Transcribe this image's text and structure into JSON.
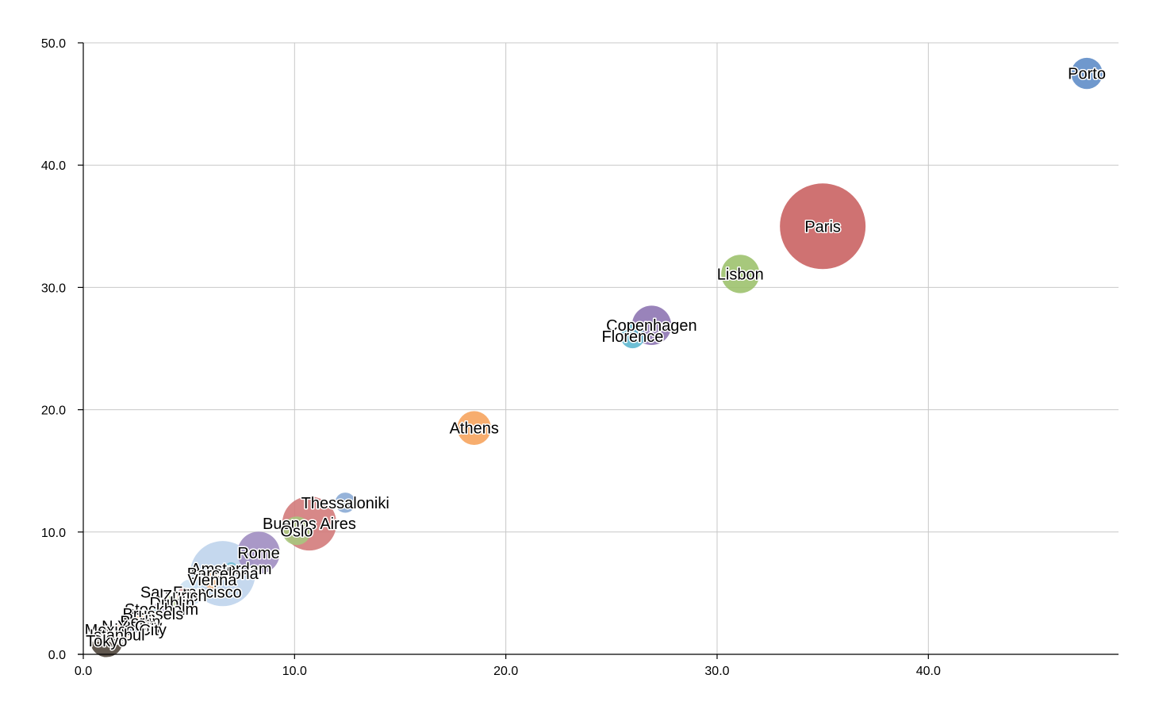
{
  "chart_data": {
    "type": "scatter",
    "title": "",
    "xlabel": "",
    "ylabel": "",
    "xlim": [
      0,
      49
    ],
    "ylim": [
      0,
      50
    ],
    "x_ticks": [
      "0.0",
      "10.0",
      "20.0",
      "30.0",
      "40.0"
    ],
    "x_tick_values": [
      0,
      10,
      20,
      30,
      40
    ],
    "y_ticks": [
      "0.0",
      "10.0",
      "20.0",
      "30.0",
      "40.0",
      "50.0"
    ],
    "y_tick_values": [
      0,
      10,
      20,
      30,
      40,
      50
    ],
    "grid": true,
    "legend": "none",
    "points": [
      {
        "label": "Porto",
        "x": 47.5,
        "y": 47.5,
        "size": 1.2,
        "color": "#5b8ac6"
      },
      {
        "label": "Paris",
        "x": 35.0,
        "y": 35.0,
        "size": 9.0,
        "color": "#c85f5f"
      },
      {
        "label": "Lisbon",
        "x": 31.1,
        "y": 31.1,
        "size": 1.8,
        "color": "#9bc06a"
      },
      {
        "label": "Copenhagen",
        "x": 26.9,
        "y": 26.9,
        "size": 1.9,
        "color": "#8b72b0"
      },
      {
        "label": "Florence",
        "x": 26.0,
        "y": 26.0,
        "size": 0.7,
        "color": "#5ab6cf"
      },
      {
        "label": "Athens",
        "x": 18.5,
        "y": 18.5,
        "size": 1.4,
        "color": "#f6a25a"
      },
      {
        "label": "Thessaloniki",
        "x": 12.4,
        "y": 12.4,
        "size": 0.5,
        "color": "#88a8d4"
      },
      {
        "label": "Buenos Aires",
        "x": 10.7,
        "y": 10.7,
        "size": 3.6,
        "color": "#d17878"
      },
      {
        "label": "Oslo",
        "x": 10.1,
        "y": 10.1,
        "size": 1.0,
        "color": "#a7c77d"
      },
      {
        "label": "Rome",
        "x": 8.3,
        "y": 8.3,
        "size": 2.2,
        "color": "#9d8abf"
      },
      {
        "label": "Amsterdam",
        "x": 7.0,
        "y": 7.0,
        "size": 0.2,
        "color": "#6fbcd4"
      },
      {
        "label": "Barcelona",
        "x": 6.6,
        "y": 6.6,
        "size": 5.2,
        "color": "#bdd3ec"
      },
      {
        "label": "Vienna",
        "x": 6.1,
        "y": 6.1,
        "size": 0.4,
        "color": "#f5b98a"
      },
      {
        "label": "San Francisco",
        "x": 5.1,
        "y": 5.1,
        "size": 0.8,
        "color": "#cbe0f2"
      },
      {
        "label": "Zurich",
        "x": 4.8,
        "y": 4.8,
        "size": 0.3,
        "color": "#d99a9a"
      },
      {
        "label": "Dublin",
        "x": 4.2,
        "y": 4.2,
        "size": 0.3,
        "color": "#c7dca8"
      },
      {
        "label": "Stockholm",
        "x": 3.7,
        "y": 3.7,
        "size": 0.3,
        "color": "#b7a9d1"
      },
      {
        "label": "Brussels",
        "x": 3.3,
        "y": 3.3,
        "size": 0.3,
        "color": "#9dcfe0"
      },
      {
        "label": "Berlin",
        "x": 2.7,
        "y": 2.7,
        "size": 0.3,
        "color": "#f7c9a2"
      },
      {
        "label": "N.Y. City",
        "x": 2.3,
        "y": 2.3,
        "size": 0.3,
        "color": "#7e8fb1"
      },
      {
        "label": "Mexico City",
        "x": 2.0,
        "y": 2.0,
        "size": 0.4,
        "color": "#f4dccf"
      },
      {
        "label": "Istanbul",
        "x": 1.6,
        "y": 1.6,
        "size": 0.5,
        "color": "#e8e8e8"
      },
      {
        "label": "Tokyo",
        "x": 1.1,
        "y": 1.1,
        "size": 1.3,
        "color": "#4a4036"
      }
    ]
  }
}
